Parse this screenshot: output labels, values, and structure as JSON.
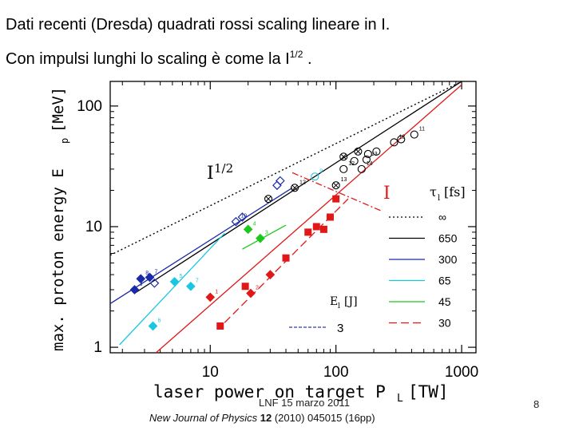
{
  "header": {
    "line1": "Dati recenti (Dresda) quadrati rossi scaling lineare in I.",
    "line2_pre": "Con impulsi lunghi lo scaling è come la I",
    "line2_sup": "1/2",
    "line2_post": " ."
  },
  "footer": {
    "date": "LNF  15 marzo 2011",
    "page": "8",
    "citation_journal": "New Journal of Physics",
    "citation_volume": "12",
    "citation_rest": " (2010) 045015 (16pp)"
  },
  "colors": {
    "black": "#000000",
    "blue": "#1a2aa8",
    "cyan": "#18c8e0",
    "green": "#1cc81c",
    "red": "#e01818"
  },
  "chart_data": {
    "type": "scatter",
    "x_scale": "log",
    "y_scale": "log",
    "xlim": [
      1.6,
      1300
    ],
    "ylim": [
      0.9,
      160
    ],
    "xlabel_main": "laser  power  on  target  P",
    "xlabel_sub": "L",
    "xlabel_unit": "[TW]",
    "ylabel_main": "max.  proton  energy  E",
    "ylabel_sub": "p",
    "ylabel_unit": "[MeV]",
    "x_ticks": [
      {
        "value": 10,
        "label": "10"
      },
      {
        "value": 100,
        "label": "100"
      },
      {
        "value": 1000,
        "label": "1000"
      }
    ],
    "y_ticks": [
      {
        "value": 1,
        "label": "1"
      },
      {
        "value": 10,
        "label": "10"
      },
      {
        "value": 100,
        "label": "100"
      }
    ],
    "annotations": {
      "sqrt": {
        "base": "I",
        "sup": "1/2"
      },
      "linear": "I"
    },
    "legend": {
      "tau_label": "τ",
      "tau_sub": "l",
      "tau_unit": "[fs]",
      "e_label": "E",
      "e_sub": "l",
      "e_unit": "[J]",
      "e_value": "3",
      "items": [
        {
          "label": "∞",
          "color": "black",
          "dash": "dot"
        },
        {
          "label": "650",
          "color": "black",
          "dash": "solid"
        },
        {
          "label": "300",
          "color": "blue",
          "dash": "solid"
        },
        {
          "label": "65",
          "color": "cyan",
          "dash": "solid"
        },
        {
          "label": "45",
          "color": "green",
          "dash": "solid"
        },
        {
          "label": "30",
          "color": "red",
          "dash": "longdash"
        }
      ]
    },
    "lines": [
      {
        "color": "black",
        "dash": "dot",
        "x": [
          1.6,
          1000
        ],
        "y": [
          5.8,
          160
        ]
      },
      {
        "color": "black",
        "dash": "solid",
        "x": [
          2.5,
          1000
        ],
        "y": [
          2.8,
          160
        ]
      },
      {
        "color": "blue",
        "dash": "solid",
        "x": [
          1.6,
          45
        ],
        "y": [
          2.3,
          21
        ]
      },
      {
        "color": "cyan",
        "dash": "solid",
        "x": [
          1.9,
          13
        ],
        "y": [
          1.05,
          8.8
        ]
      },
      {
        "color": "green",
        "dash": "solid",
        "x": [
          18,
          40
        ],
        "y": [
          6.5,
          10.3
        ]
      },
      {
        "color": "red",
        "dash": "solid",
        "x": [
          3.7,
          1000
        ],
        "y": [
          0.9,
          150
        ]
      },
      {
        "color": "red",
        "dash": "longdash",
        "x": [
          13,
          125
        ],
        "y": [
          1.6,
          17
        ]
      },
      {
        "color": "red",
        "dash": "dashdot",
        "x": [
          45,
          230
        ],
        "y": [
          28,
          13.5
        ]
      }
    ],
    "series": [
      {
        "color": "blue",
        "marker": "diamond-filled",
        "points": [
          {
            "x": 2.5,
            "y": 3.0,
            "label": "3"
          },
          {
            "x": 2.8,
            "y": 3.7,
            "label": "8"
          },
          {
            "x": 3.3,
            "y": 3.8,
            "label": "7"
          }
        ]
      },
      {
        "color": "blue",
        "marker": "diamond-open",
        "points": [
          {
            "x": 3.6,
            "y": 3.4,
            "label": ""
          },
          {
            "x": 16,
            "y": 11,
            "label": "10"
          },
          {
            "x": 18,
            "y": 12,
            "label": ""
          },
          {
            "x": 34,
            "y": 22,
            "label": ""
          },
          {
            "x": 36,
            "y": 24,
            "label": ""
          }
        ]
      },
      {
        "color": "cyan",
        "marker": "diamond-filled",
        "points": [
          {
            "x": 3.5,
            "y": 1.5,
            "label": "6"
          },
          {
            "x": 5.2,
            "y": 3.5,
            "label": "5"
          },
          {
            "x": 7,
            "y": 3.2,
            "label": "7"
          }
        ]
      },
      {
        "color": "cyan",
        "marker": "circle-open",
        "points": [
          {
            "x": 68,
            "y": 26,
            "label": "9"
          }
        ]
      },
      {
        "color": "green",
        "marker": "diamond-filled",
        "points": [
          {
            "x": 20,
            "y": 9.5,
            "label": "4"
          },
          {
            "x": 25,
            "y": 8.0,
            "label": "3"
          }
        ]
      },
      {
        "color": "red",
        "marker": "diamond-filled",
        "points": [
          {
            "x": 10,
            "y": 2.6,
            "label": "1"
          },
          {
            "x": 21,
            "y": 2.8,
            "label": "2"
          },
          {
            "x": 30,
            "y": 4.0,
            "label": ""
          }
        ]
      },
      {
        "color": "red",
        "marker": "square-filled",
        "points": [
          {
            "x": 12,
            "y": 1.5
          },
          {
            "x": 19,
            "y": 3.2
          },
          {
            "x": 40,
            "y": 5.5
          },
          {
            "x": 60,
            "y": 9.0
          },
          {
            "x": 70,
            "y": 10.0
          },
          {
            "x": 80,
            "y": 9.5
          },
          {
            "x": 90,
            "y": 12.0
          },
          {
            "x": 100,
            "y": 17.0
          }
        ]
      },
      {
        "color": "black",
        "marker": "circle-x",
        "points": [
          {
            "x": 29,
            "y": 17,
            "label": ""
          },
          {
            "x": 47,
            "y": 21,
            "label": "12"
          },
          {
            "x": 100,
            "y": 22,
            "label": "13"
          },
          {
            "x": 115,
            "y": 38,
            "label": ""
          },
          {
            "x": 150,
            "y": 42,
            "label": ""
          }
        ]
      },
      {
        "color": "black",
        "marker": "circle-open",
        "points": [
          {
            "x": 115,
            "y": 30,
            "label": "12"
          },
          {
            "x": 140,
            "y": 35,
            "label": ""
          },
          {
            "x": 160,
            "y": 30,
            "label": "14"
          },
          {
            "x": 175,
            "y": 36,
            "label": "13"
          },
          {
            "x": 180,
            "y": 40,
            "label": ""
          },
          {
            "x": 210,
            "y": 42,
            "label": ""
          },
          {
            "x": 290,
            "y": 50,
            "label": "12"
          },
          {
            "x": 330,
            "y": 53,
            "label": ""
          },
          {
            "x": 420,
            "y": 58,
            "label": "11"
          }
        ]
      }
    ]
  }
}
